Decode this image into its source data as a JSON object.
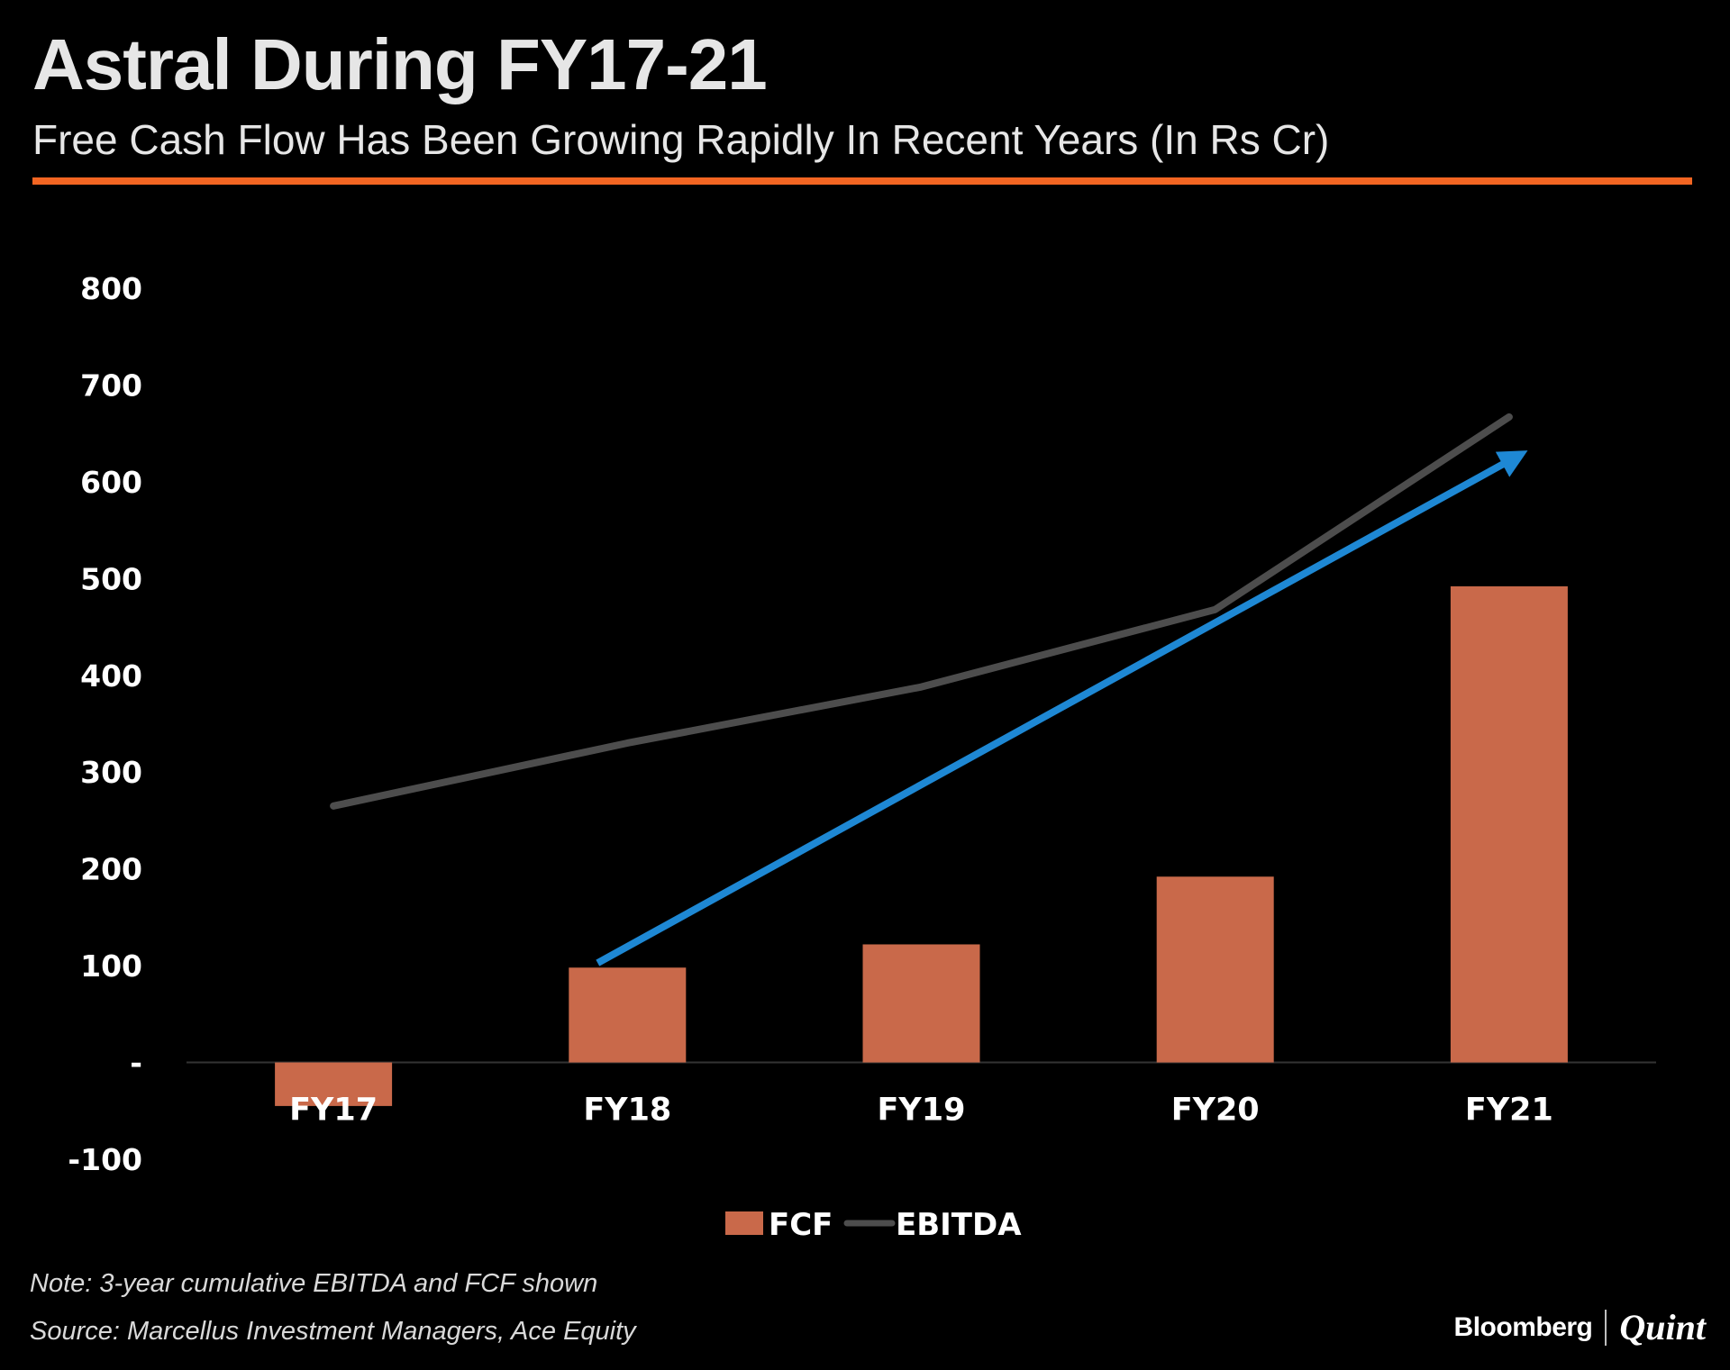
{
  "header": {
    "title": "Astral During FY17-21",
    "subtitle": "Free Cash Flow Has Been Growing Rapidly In Recent Years  (In Rs Cr)"
  },
  "colors": {
    "background": "#000000",
    "accent_rule": "#f26522",
    "fcf_bar": "#c9694a",
    "ebitda_line": "#4d4d4d",
    "trend_arrow": "#1e88d4",
    "axis_line": "#333333"
  },
  "chart_data": {
    "type": "bar",
    "title": "Astral During FY17-21",
    "categories": [
      "FY17",
      "FY18",
      "FY19",
      "FY20",
      "FY21"
    ],
    "series": [
      {
        "name": "FCF",
        "kind": "bar",
        "values": [
          -45,
          98,
          122,
          192,
          492
        ]
      },
      {
        "name": "EBITDA",
        "kind": "line",
        "values": [
          265,
          330,
          388,
          468,
          667
        ]
      }
    ],
    "annotations": [
      {
        "kind": "arrow",
        "from": {
          "category": "FY18",
          "value": 100
        },
        "to": {
          "category": "FY21",
          "value": 637
        }
      }
    ],
    "ylim": [
      -100,
      800
    ],
    "yticks": [
      -100,
      0,
      100,
      200,
      300,
      400,
      500,
      600,
      700,
      800
    ],
    "ytick_labels": [
      "-100",
      "-",
      "100",
      "200",
      "300",
      "400",
      "500",
      "600",
      "700",
      "800"
    ],
    "xlabel": "",
    "ylabel": "",
    "grid": false,
    "legend": {
      "placement": "bottom-center",
      "entries": [
        "FCF",
        "EBITDA"
      ]
    }
  },
  "footer": {
    "note": "Note: 3-year cumulative EBITDA and FCF shown",
    "source": "Source: Marcellus Investment Managers, Ace Equity",
    "logo_left": "Bloomberg",
    "logo_right": "Quint"
  }
}
